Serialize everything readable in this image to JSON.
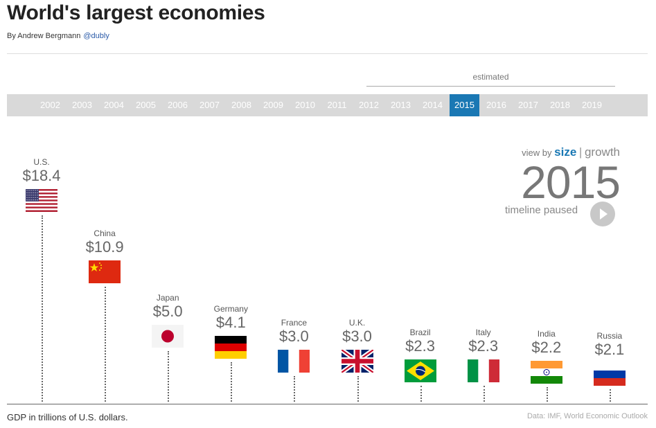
{
  "header": {
    "title": "World's largest economies",
    "byline": "By Andrew Bergmann",
    "handle": "@dubly"
  },
  "timeline": {
    "estimated_label": "estimated",
    "years": [
      "2002",
      "2003",
      "2004",
      "2005",
      "2006",
      "2007",
      "2008",
      "2009",
      "2010",
      "2011",
      "2012",
      "2013",
      "2014",
      "2015",
      "2016",
      "2017",
      "2018",
      "2019"
    ],
    "selected": "2015"
  },
  "controls": {
    "view_by": "view by",
    "size": "size",
    "separator": "|",
    "growth": "growth",
    "current_year": "2015",
    "status": "timeline paused"
  },
  "footer": {
    "note": "GDP in trillions of U.S. dollars.",
    "source": "Data: IMF, World Economic Outlook"
  },
  "colors": {
    "accent": "#1a78b4",
    "timeline_bg": "#d9d9d9"
  },
  "chart_data": {
    "type": "bar",
    "title": "World's largest economies",
    "ylabel": "GDP in trillions of U.S. dollars.",
    "year": "2015",
    "ylim": [
      0,
      18.4
    ],
    "categories": [
      "U.S.",
      "China",
      "Japan",
      "Germany",
      "France",
      "U.K.",
      "Brazil",
      "Italy",
      "India",
      "Russia"
    ],
    "values": [
      18.4,
      10.9,
      5.0,
      4.1,
      3.0,
      3.0,
      2.3,
      2.3,
      2.2,
      2.1
    ],
    "value_labels": [
      "$18.4",
      "$10.9",
      "$5.0",
      "$4.1",
      "$3.0",
      "$3.0",
      "$2.3",
      "$2.3",
      "$2.2",
      "$2.1"
    ],
    "flags": [
      "us-flag",
      "china-flag",
      "japan-flag",
      "germany-flag",
      "france-flag",
      "uk-flag",
      "brazil-flag",
      "italy-flag",
      "india-flag",
      "russia-flag"
    ]
  }
}
